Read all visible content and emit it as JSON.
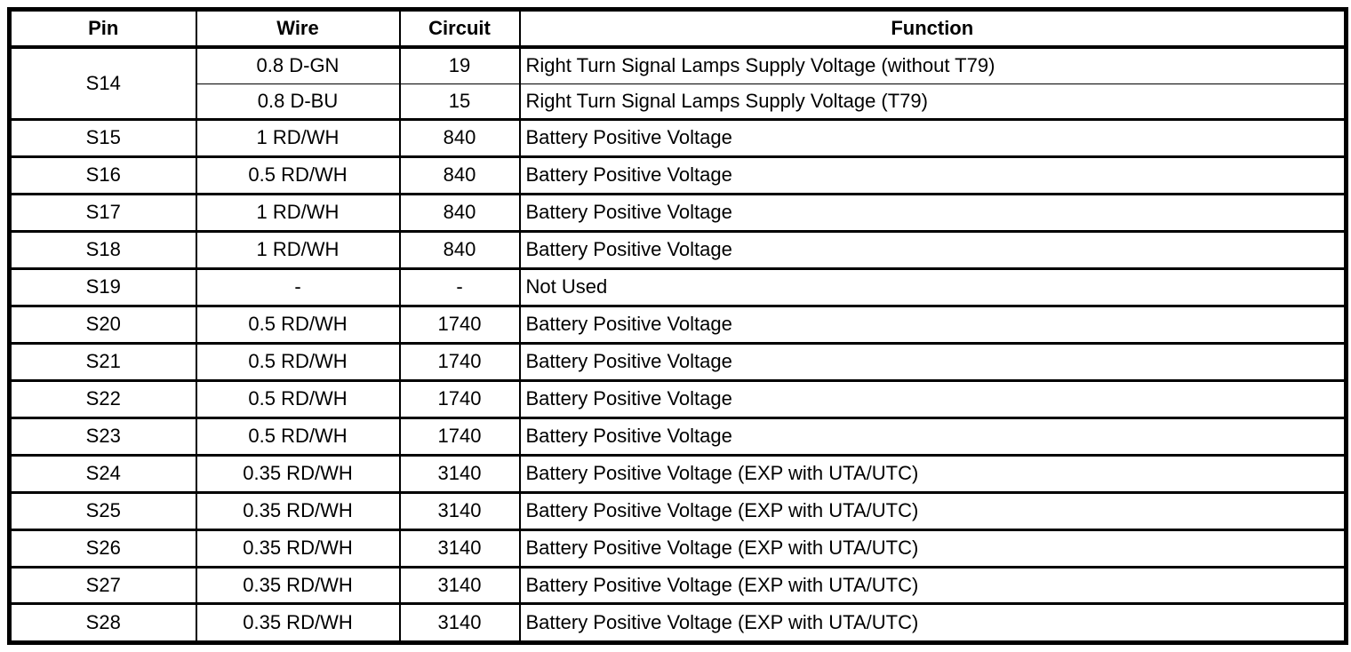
{
  "table": {
    "headers": {
      "pin": "Pin",
      "wire": "Wire",
      "circuit": "Circuit",
      "function": "Function"
    },
    "rows": [
      {
        "pin": "S14",
        "pin_rowspan": 2,
        "wire": "0.8 D-GN",
        "circuit": "19",
        "function": "Right Turn Signal Lamps Supply Voltage (without T79)"
      },
      {
        "wire": "0.8 D-BU",
        "circuit": "15",
        "function": "Right Turn Signal Lamps Supply Voltage (T79)"
      },
      {
        "pin": "S15",
        "wire": "1 RD/WH",
        "circuit": "840",
        "function": "Battery Positive Voltage"
      },
      {
        "pin": "S16",
        "wire": "0.5 RD/WH",
        "circuit": "840",
        "function": "Battery Positive Voltage"
      },
      {
        "pin": "S17",
        "wire": "1 RD/WH",
        "circuit": "840",
        "function": "Battery Positive Voltage"
      },
      {
        "pin": "S18",
        "wire": "1 RD/WH",
        "circuit": "840",
        "function": "Battery Positive Voltage"
      },
      {
        "pin": "S19",
        "wire": "-",
        "circuit": "-",
        "function": "Not Used"
      },
      {
        "pin": "S20",
        "wire": "0.5 RD/WH",
        "circuit": "1740",
        "function": "Battery Positive Voltage"
      },
      {
        "pin": "S21",
        "wire": "0.5 RD/WH",
        "circuit": "1740",
        "function": "Battery Positive Voltage"
      },
      {
        "pin": "S22",
        "wire": "0.5 RD/WH",
        "circuit": "1740",
        "function": "Battery Positive Voltage"
      },
      {
        "pin": "S23",
        "wire": "0.5 RD/WH",
        "circuit": "1740",
        "function": "Battery Positive Voltage"
      },
      {
        "pin": "S24",
        "wire": "0.35 RD/WH",
        "circuit": "3140",
        "function": "Battery Positive Voltage (EXP with UTA/UTC)"
      },
      {
        "pin": "S25",
        "wire": "0.35 RD/WH",
        "circuit": "3140",
        "function": "Battery Positive Voltage (EXP with UTA/UTC)"
      },
      {
        "pin": "S26",
        "wire": "0.35 RD/WH",
        "circuit": "3140",
        "function": "Battery Positive Voltage (EXP with UTA/UTC)"
      },
      {
        "pin": "S27",
        "wire": "0.35 RD/WH",
        "circuit": "3140",
        "function": "Battery Positive Voltage (EXP with UTA/UTC)"
      },
      {
        "pin": "S28",
        "wire": "0.35 RD/WH",
        "circuit": "3140",
        "function": "Battery Positive Voltage (EXP with UTA/UTC)"
      }
    ],
    "colors": {
      "border": "#000000",
      "text": "#000000",
      "background": "#ffffff"
    }
  }
}
